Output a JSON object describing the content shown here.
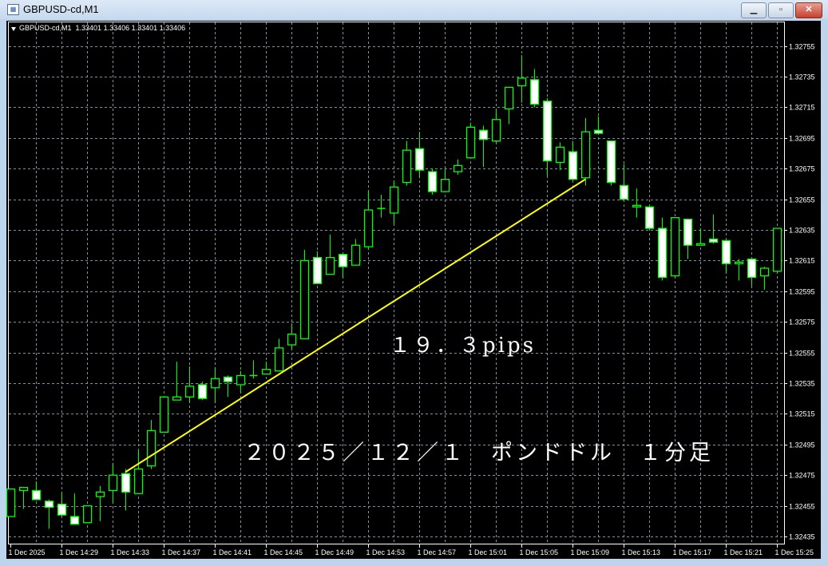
{
  "window": {
    "title": "GBPUSD-cd,M1",
    "icon": "chart-window-icon",
    "buttons": {
      "minimize": "▁",
      "restore": "▫",
      "close": "✕"
    }
  },
  "header": {
    "symbol": "GBPUSD-cd,M1",
    "ohlc_text": "1.33401 1.33406 1.33401 1.33406"
  },
  "annotations": {
    "pips": "１９．３pips",
    "date_label": "２０２５／１２／１　ポンドドル　１分足"
  },
  "colors": {
    "background": "#000000",
    "candle_outline": "#00ff00",
    "bear_body": "#ffffff",
    "bull_body": "#000000",
    "grid": "#8090a0",
    "trendline": "#ffff00"
  },
  "chart_data": {
    "type": "candlestick",
    "grid": true,
    "ylim": [
      1.32425,
      1.3277
    ],
    "y_ticks": [
      "1.32755",
      "1.32735",
      "1.32715",
      "1.32695",
      "1.32675",
      "1.32655",
      "1.32635",
      "1.32615",
      "1.32595",
      "1.32575",
      "1.32555",
      "1.32535",
      "1.32515",
      "1.32495",
      "1.32475",
      "1.32455",
      "1.32435"
    ],
    "x_ticks": [
      "1 Dec 2025",
      "1 Dec 14:29",
      "1 Dec 14:33",
      "1 Dec 14:37",
      "1 Dec 14:41",
      "1 Dec 14:45",
      "1 Dec 14:49",
      "1 Dec 14:53",
      "1 Dec 14:57",
      "1 Dec 15:01",
      "1 Dec 15:05",
      "1 Dec 15:09",
      "1 Dec 15:13",
      "1 Dec 15:17",
      "1 Dec 15:21",
      "1 Dec 15:25"
    ],
    "candles": [
      {
        "t": "14:25",
        "o": 1.32448,
        "h": 1.32466,
        "l": 1.32448,
        "c": 1.32466
      },
      {
        "t": "14:26",
        "o": 1.32465,
        "h": 1.32467,
        "l": 1.32453,
        "c": 1.32467
      },
      {
        "t": "14:27",
        "o": 1.32465,
        "h": 1.32471,
        "l": 1.32459,
        "c": 1.32459
      },
      {
        "t": "14:28",
        "o": 1.32458,
        "h": 1.32459,
        "l": 1.3244,
        "c": 1.32454
      },
      {
        "t": "14:29",
        "o": 1.32456,
        "h": 1.32464,
        "l": 1.32448,
        "c": 1.32449
      },
      {
        "t": "14:30",
        "o": 1.32448,
        "h": 1.32463,
        "l": 1.32443,
        "c": 1.32443
      },
      {
        "t": "14:31",
        "o": 1.32444,
        "h": 1.32455,
        "l": 1.32444,
        "c": 1.32455
      },
      {
        "t": "14:32",
        "o": 1.32461,
        "h": 1.32468,
        "l": 1.32445,
        "c": 1.32464
      },
      {
        "t": "14:33",
        "o": 1.32465,
        "h": 1.32483,
        "l": 1.32457,
        "c": 1.32475
      },
      {
        "t": "14:34",
        "o": 1.32476,
        "h": 1.32479,
        "l": 1.32452,
        "c": 1.32464
      },
      {
        "t": "14:35",
        "o": 1.32463,
        "h": 1.32491,
        "l": 1.32463,
        "c": 1.32479
      },
      {
        "t": "14:36",
        "o": 1.32481,
        "h": 1.32511,
        "l": 1.32479,
        "c": 1.32504
      },
      {
        "t": "14:37",
        "o": 1.32503,
        "h": 1.32526,
        "l": 1.32503,
        "c": 1.32526
      },
      {
        "t": "14:38",
        "o": 1.32524,
        "h": 1.32549,
        "l": 1.32524,
        "c": 1.32526
      },
      {
        "t": "14:39",
        "o": 1.32526,
        "h": 1.32546,
        "l": 1.32522,
        "c": 1.32533
      },
      {
        "t": "14:40",
        "o": 1.32534,
        "h": 1.32536,
        "l": 1.32524,
        "c": 1.32525
      },
      {
        "t": "14:41",
        "o": 1.32532,
        "h": 1.32545,
        "l": 1.32522,
        "c": 1.32538
      },
      {
        "t": "14:42",
        "o": 1.32539,
        "h": 1.3254,
        "l": 1.32526,
        "c": 1.32536
      },
      {
        "t": "14:43",
        "o": 1.32534,
        "h": 1.32543,
        "l": 1.32529,
        "c": 1.3254
      },
      {
        "t": "14:44",
        "o": 1.3254,
        "h": 1.3255,
        "l": 1.32538,
        "c": 1.3254
      },
      {
        "t": "14:45",
        "o": 1.32541,
        "h": 1.32549,
        "l": 1.32541,
        "c": 1.32544
      },
      {
        "t": "14:46",
        "o": 1.32543,
        "h": 1.32564,
        "l": 1.32543,
        "c": 1.32558
      },
      {
        "t": "14:47",
        "o": 1.3256,
        "h": 1.32574,
        "l": 1.32557,
        "c": 1.32567
      },
      {
        "t": "14:48",
        "o": 1.32564,
        "h": 1.32622,
        "l": 1.32564,
        "c": 1.32615
      },
      {
        "t": "14:49",
        "o": 1.32617,
        "h": 1.32621,
        "l": 1.326,
        "c": 1.326
      },
      {
        "t": "14:50",
        "o": 1.32606,
        "h": 1.32632,
        "l": 1.32606,
        "c": 1.32617
      },
      {
        "t": "14:51",
        "o": 1.32619,
        "h": 1.32619,
        "l": 1.32604,
        "c": 1.32611
      },
      {
        "t": "14:52",
        "o": 1.32612,
        "h": 1.32629,
        "l": 1.32612,
        "c": 1.32625
      },
      {
        "t": "14:53",
        "o": 1.32624,
        "h": 1.32661,
        "l": 1.32622,
        "c": 1.32648
      },
      {
        "t": "14:54",
        "o": 1.32649,
        "h": 1.32658,
        "l": 1.32643,
        "c": 1.32649
      },
      {
        "t": "14:55",
        "o": 1.32646,
        "h": 1.32667,
        "l": 1.32639,
        "c": 1.32663
      },
      {
        "t": "14:56",
        "o": 1.32666,
        "h": 1.32693,
        "l": 1.32664,
        "c": 1.32687
      },
      {
        "t": "14:57",
        "o": 1.32688,
        "h": 1.32699,
        "l": 1.32669,
        "c": 1.32674
      },
      {
        "t": "14:58",
        "o": 1.32673,
        "h": 1.32675,
        "l": 1.32658,
        "c": 1.3266
      },
      {
        "t": "14:59",
        "o": 1.3266,
        "h": 1.32675,
        "l": 1.3266,
        "c": 1.32668
      },
      {
        "t": "15:00",
        "o": 1.32673,
        "h": 1.32681,
        "l": 1.32671,
        "c": 1.32677
      },
      {
        "t": "15:01",
        "o": 1.32682,
        "h": 1.32705,
        "l": 1.32682,
        "c": 1.32702
      },
      {
        "t": "15:02",
        "o": 1.327,
        "h": 1.32703,
        "l": 1.32676,
        "c": 1.32694
      },
      {
        "t": "15:03",
        "o": 1.32693,
        "h": 1.32714,
        "l": 1.32692,
        "c": 1.32707
      },
      {
        "t": "15:04",
        "o": 1.32714,
        "h": 1.32728,
        "l": 1.32704,
        "c": 1.32728
      },
      {
        "t": "15:05",
        "o": 1.32729,
        "h": 1.32749,
        "l": 1.32718,
        "c": 1.32734
      },
      {
        "t": "15:06",
        "o": 1.32733,
        "h": 1.3274,
        "l": 1.32715,
        "c": 1.32717
      },
      {
        "t": "15:07",
        "o": 1.32719,
        "h": 1.32721,
        "l": 1.3267,
        "c": 1.3268
      },
      {
        "t": "15:08",
        "o": 1.32679,
        "h": 1.32692,
        "l": 1.32674,
        "c": 1.32689
      },
      {
        "t": "15:09",
        "o": 1.32686,
        "h": 1.32693,
        "l": 1.32667,
        "c": 1.32668
      },
      {
        "t": "15:10",
        "o": 1.32669,
        "h": 1.32708,
        "l": 1.32664,
        "c": 1.32699
      },
      {
        "t": "15:11",
        "o": 1.327,
        "h": 1.32709,
        "l": 1.32698,
        "c": 1.32698
      },
      {
        "t": "15:12",
        "o": 1.32693,
        "h": 1.32693,
        "l": 1.32664,
        "c": 1.32666
      },
      {
        "t": "15:13",
        "o": 1.32664,
        "h": 1.32678,
        "l": 1.32655,
        "c": 1.32655
      },
      {
        "t": "15:14",
        "o": 1.3265,
        "h": 1.32662,
        "l": 1.32643,
        "c": 1.32651
      },
      {
        "t": "15:15",
        "o": 1.3265,
        "h": 1.3265,
        "l": 1.32635,
        "c": 1.32636
      },
      {
        "t": "15:16",
        "o": 1.32636,
        "h": 1.32643,
        "l": 1.32602,
        "c": 1.32604
      },
      {
        "t": "15:17",
        "o": 1.32605,
        "h": 1.32643,
        "l": 1.32604,
        "c": 1.32643
      },
      {
        "t": "15:18",
        "o": 1.32642,
        "h": 1.32642,
        "l": 1.32616,
        "c": 1.32625
      },
      {
        "t": "15:19",
        "o": 1.32625,
        "h": 1.32636,
        "l": 1.32625,
        "c": 1.32626
      },
      {
        "t": "15:20",
        "o": 1.32629,
        "h": 1.32645,
        "l": 1.32626,
        "c": 1.32627
      },
      {
        "t": "15:21",
        "o": 1.32628,
        "h": 1.32628,
        "l": 1.32607,
        "c": 1.32613
      },
      {
        "t": "15:22",
        "o": 1.32613,
        "h": 1.32616,
        "l": 1.32602,
        "c": 1.32614
      },
      {
        "t": "15:23",
        "o": 1.32616,
        "h": 1.32616,
        "l": 1.32598,
        "c": 1.32604
      },
      {
        "t": "15:24",
        "o": 1.32605,
        "h": 1.32611,
        "l": 1.32596,
        "c": 1.3261
      },
      {
        "t": "15:25",
        "o": 1.32608,
        "h": 1.32636,
        "l": 1.32608,
        "c": 1.32636
      }
    ],
    "trendline": {
      "from": {
        "t": "14:34",
        "price": 1.32477
      },
      "to": {
        "t": "15:10",
        "price": 1.32668
      }
    }
  }
}
